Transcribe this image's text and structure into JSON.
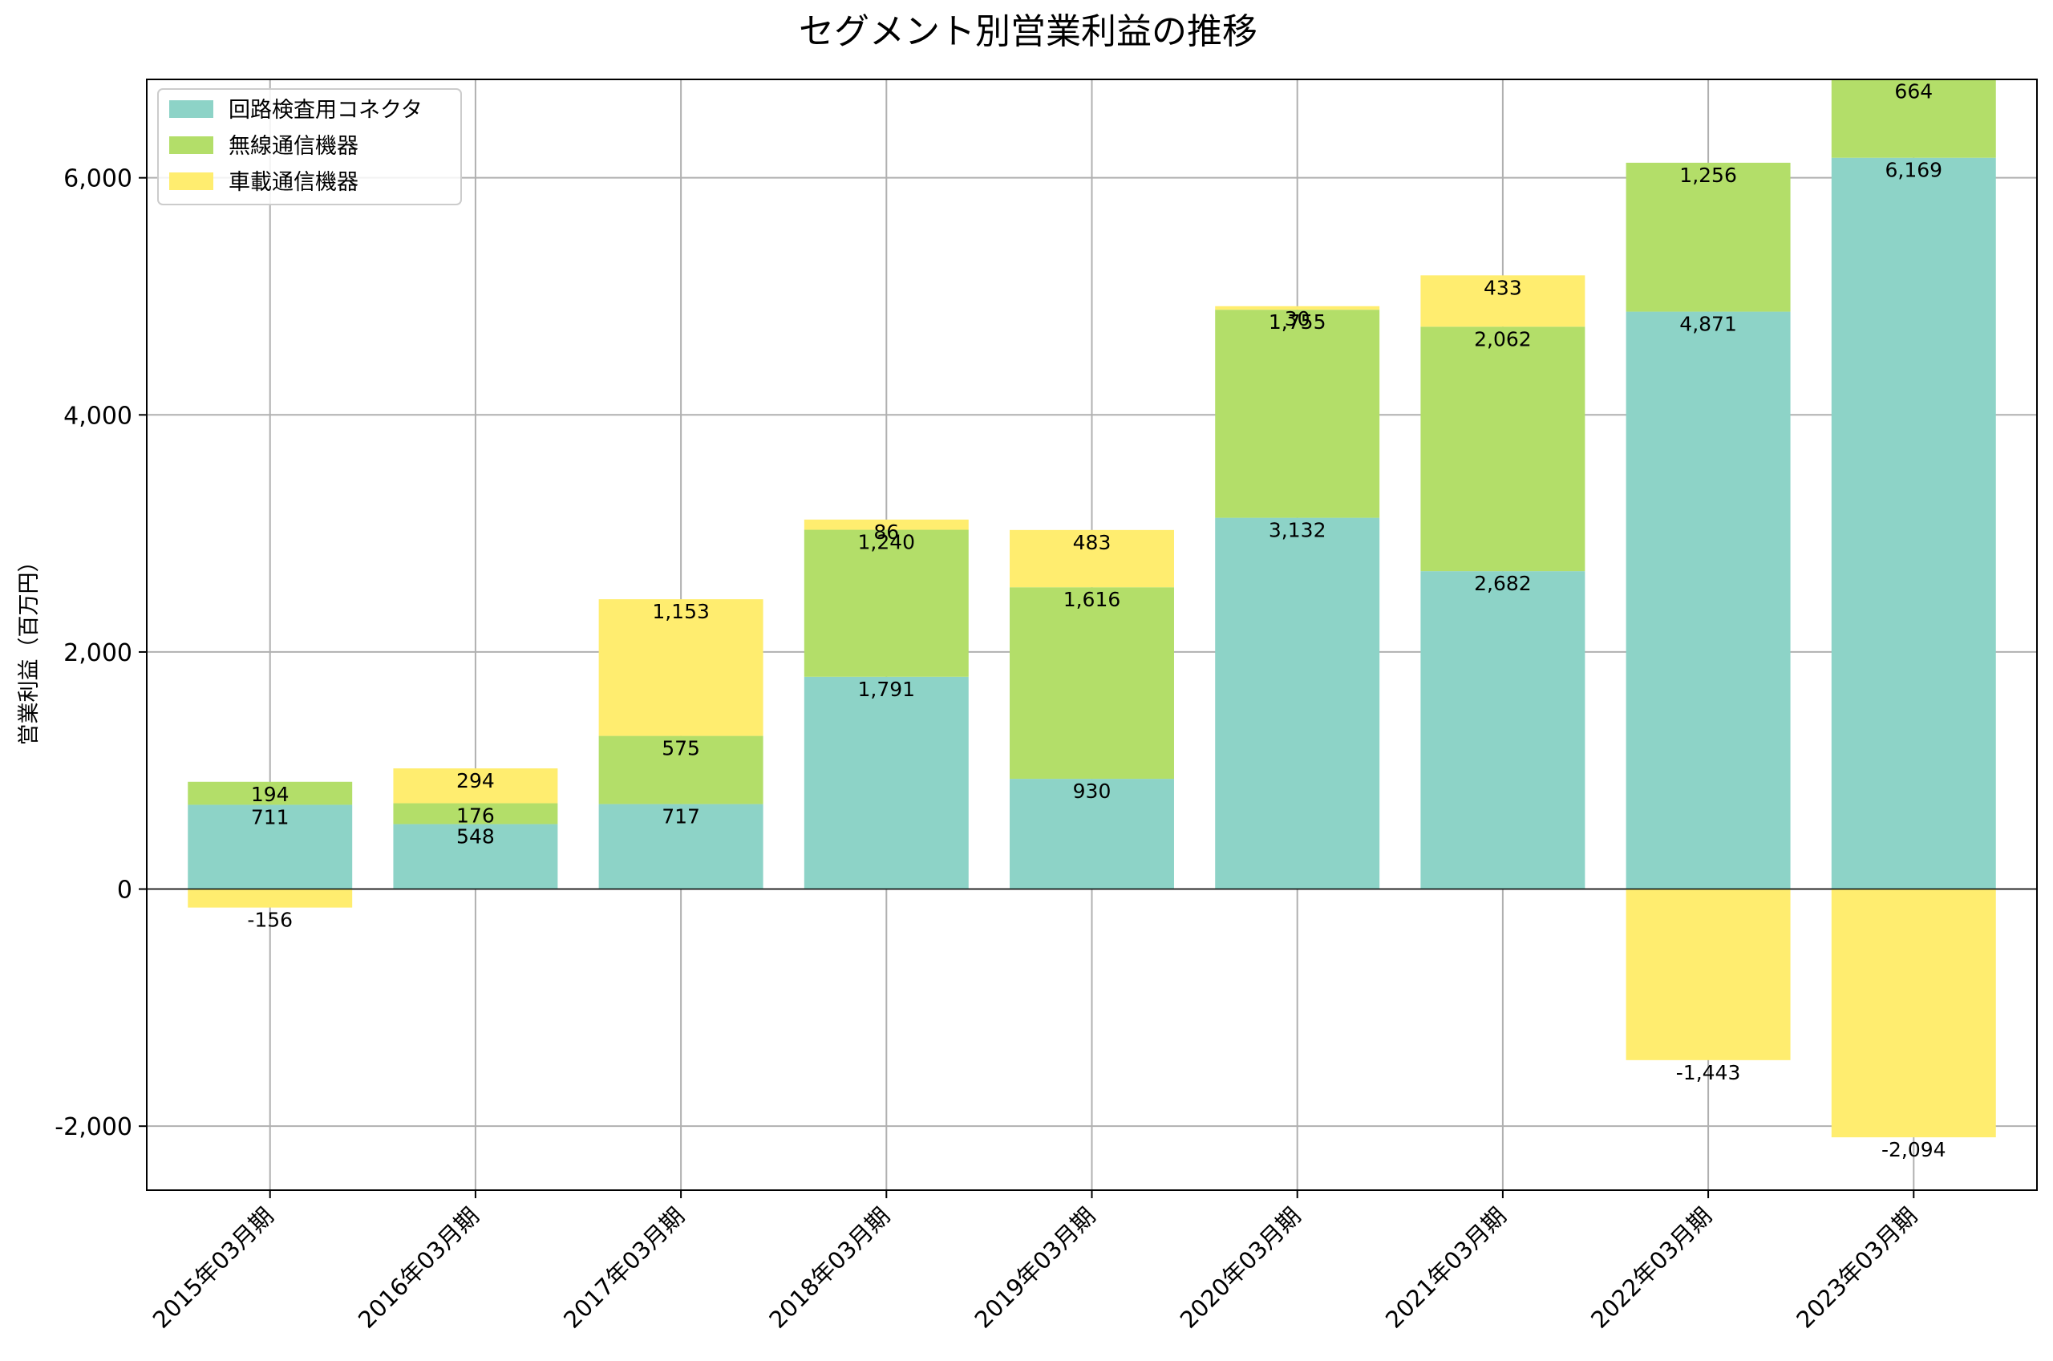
{
  "chart_data": {
    "type": "bar",
    "stacked": true,
    "title": "セグメント別営業利益の推移",
    "xlabel": "",
    "ylabel": "営業利益（百万円）",
    "categories": [
      "2015年03月期",
      "2016年03月期",
      "2017年03月期",
      "2018年03月期",
      "2019年03月期",
      "2020年03月期",
      "2021年03月期",
      "2022年03月期",
      "2023年03月期"
    ],
    "series": [
      {
        "name": "回路検査用コネクタ",
        "color": "#8dd3c7",
        "values": [
          711,
          548,
          717,
          1791,
          930,
          3132,
          2682,
          4871,
          6169
        ]
      },
      {
        "name": "無線通信機器",
        "color": "#b3de69",
        "values": [
          194,
          176,
          575,
          1240,
          1616,
          1755,
          2062,
          1256,
          664
        ]
      },
      {
        "name": "車載通信機器",
        "color": "#ffed6f",
        "values": [
          -156,
          294,
          1153,
          86,
          483,
          30,
          433,
          -1443,
          -2094
        ]
      }
    ],
    "ylim": [
      -2540,
      6830
    ],
    "yticks": [
      -2000,
      0,
      2000,
      4000,
      6000
    ],
    "ytick_labels": [
      "-2,000",
      "0",
      "2,000",
      "4,000",
      "6,000"
    ],
    "grid": true,
    "legend_position": "top-left"
  }
}
